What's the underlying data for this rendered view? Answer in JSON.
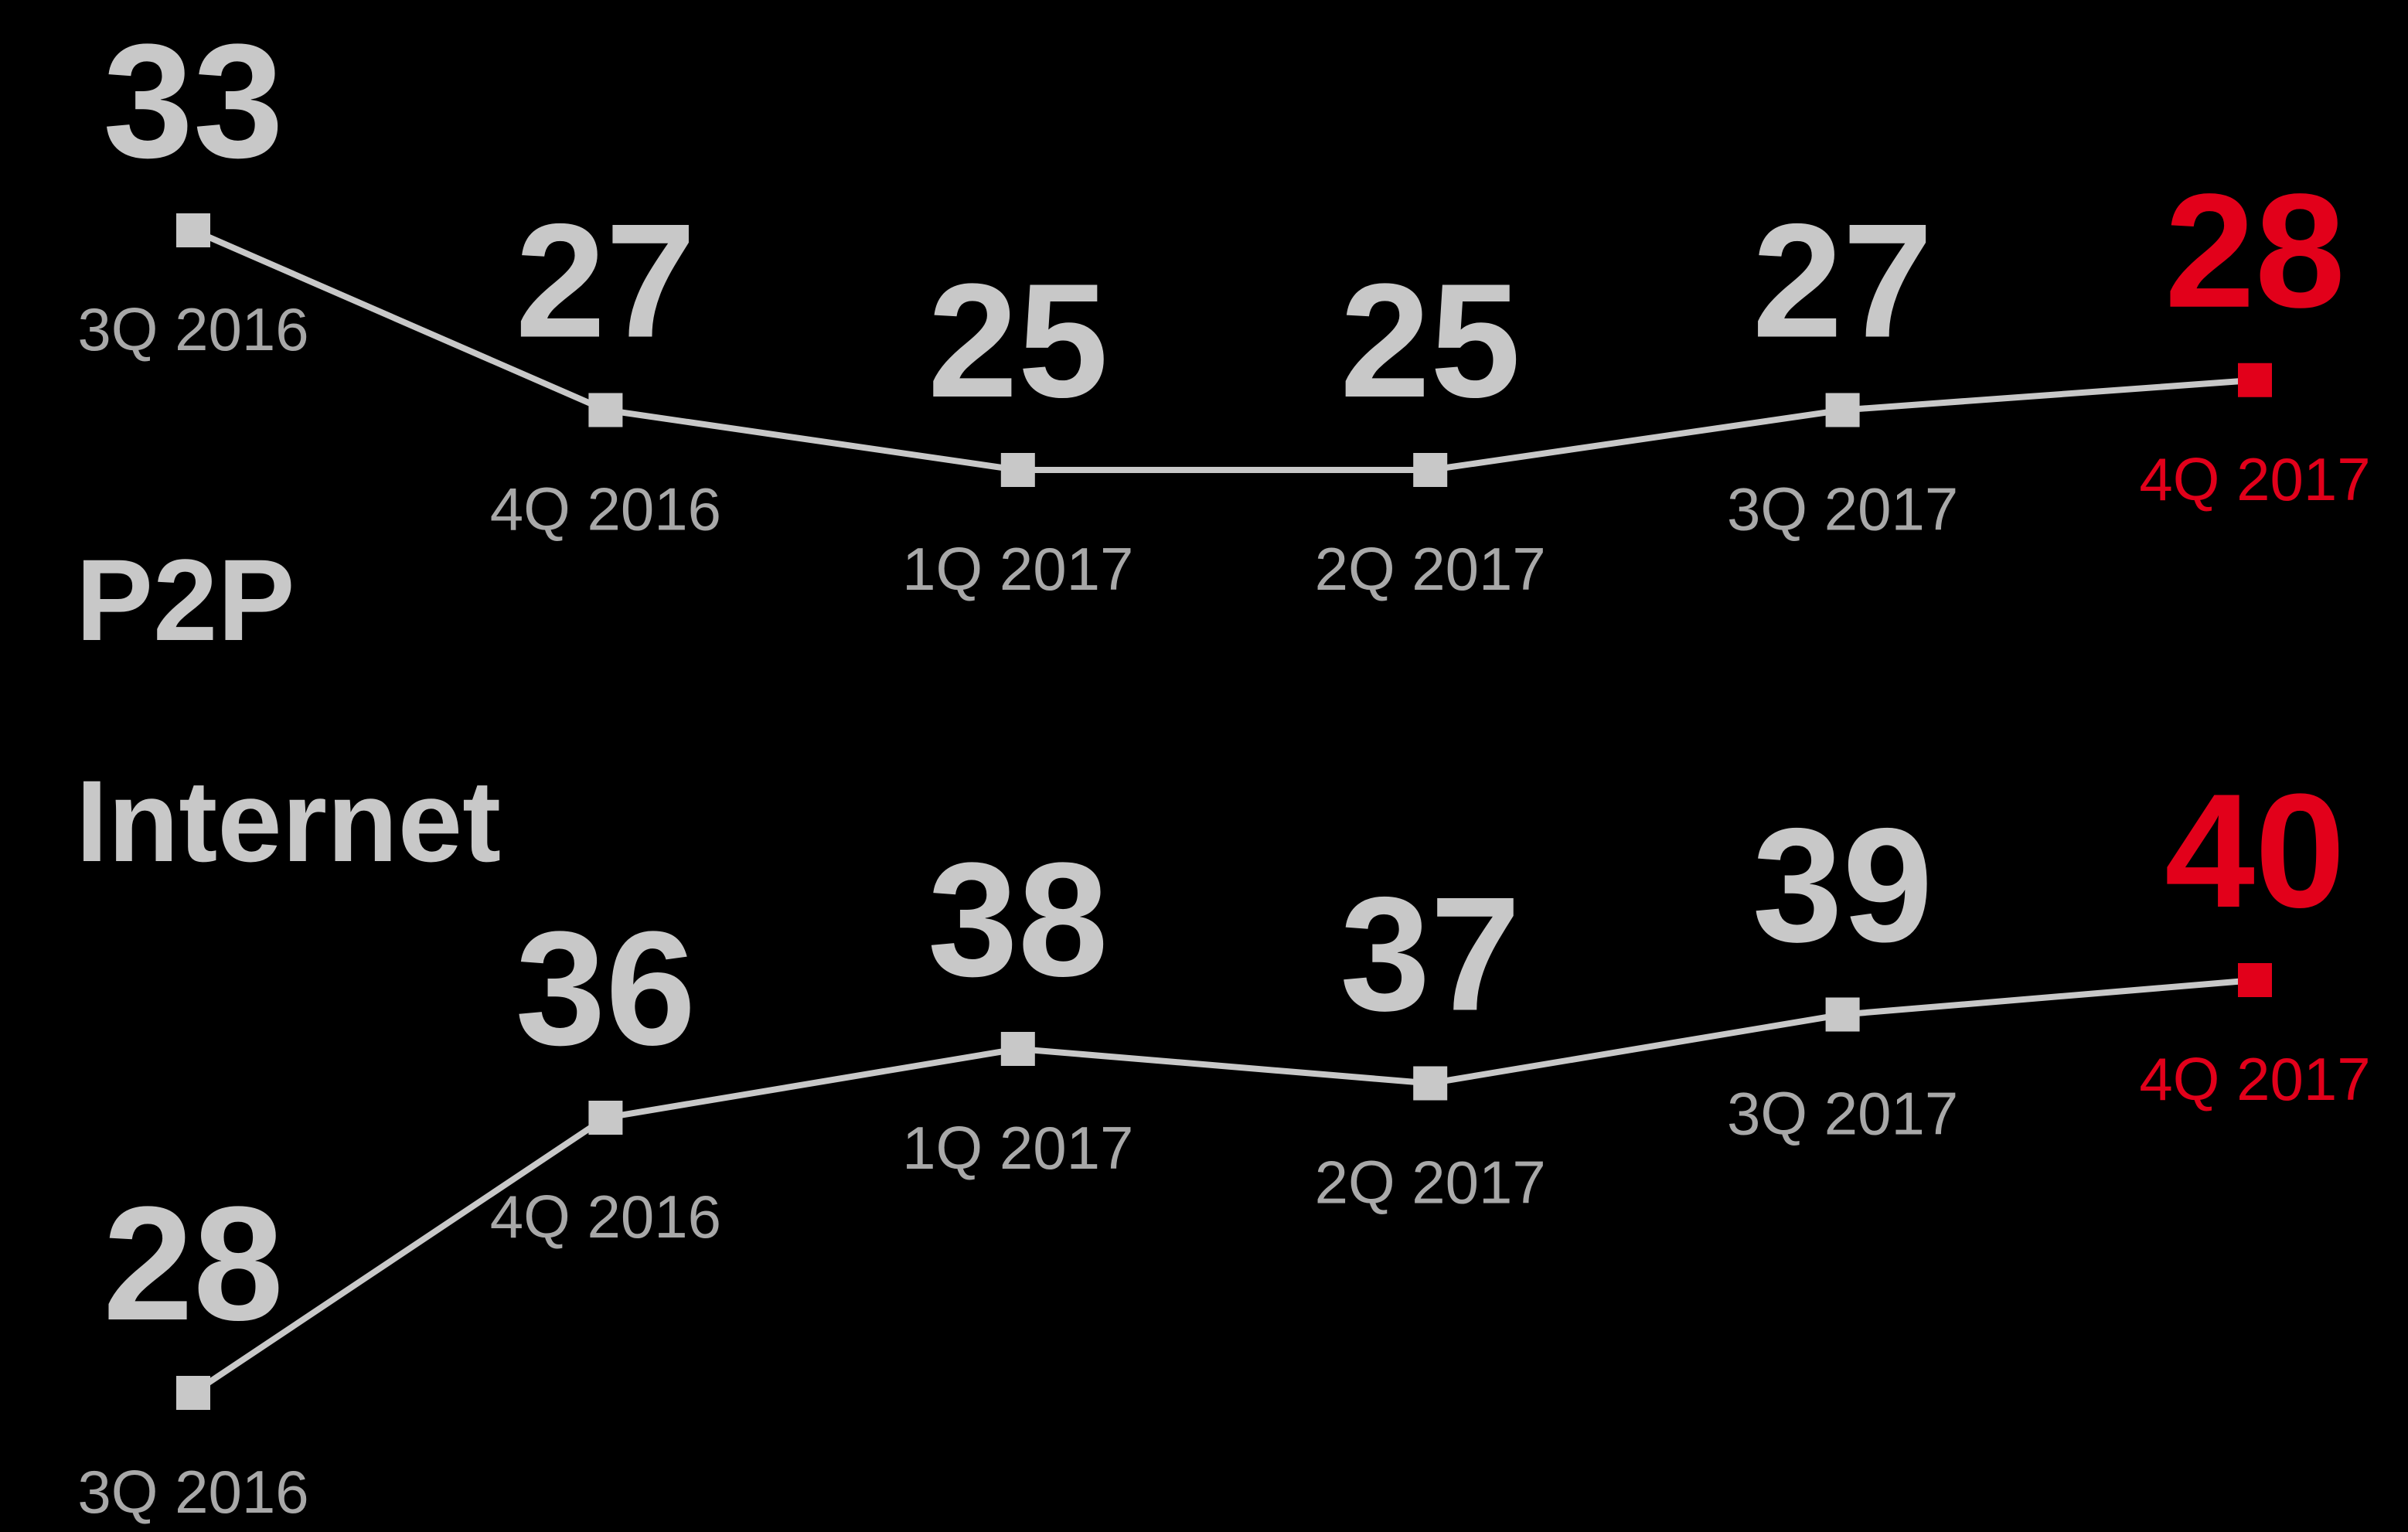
{
  "chart_data": [
    {
      "type": "line",
      "title": "P2P",
      "categories": [
        "3Q 2016",
        "4Q 2016",
        "1Q 2017",
        "2Q 2017",
        "3Q 2017",
        "4Q 2017"
      ],
      "values": [
        33,
        27,
        25,
        25,
        27,
        28
      ],
      "color": "#c8c8c8",
      "highlight_color": "#e2001a"
    },
    {
      "type": "line",
      "title": "Internet",
      "categories": [
        "3Q 2016",
        "4Q 2016",
        "1Q 2017",
        "2Q 2017",
        "3Q 2017",
        "4Q 2017"
      ],
      "values": [
        28,
        36,
        38,
        37,
        39,
        40
      ],
      "color": "#c8c8c8",
      "highlight_color": "#e2001a"
    }
  ]
}
